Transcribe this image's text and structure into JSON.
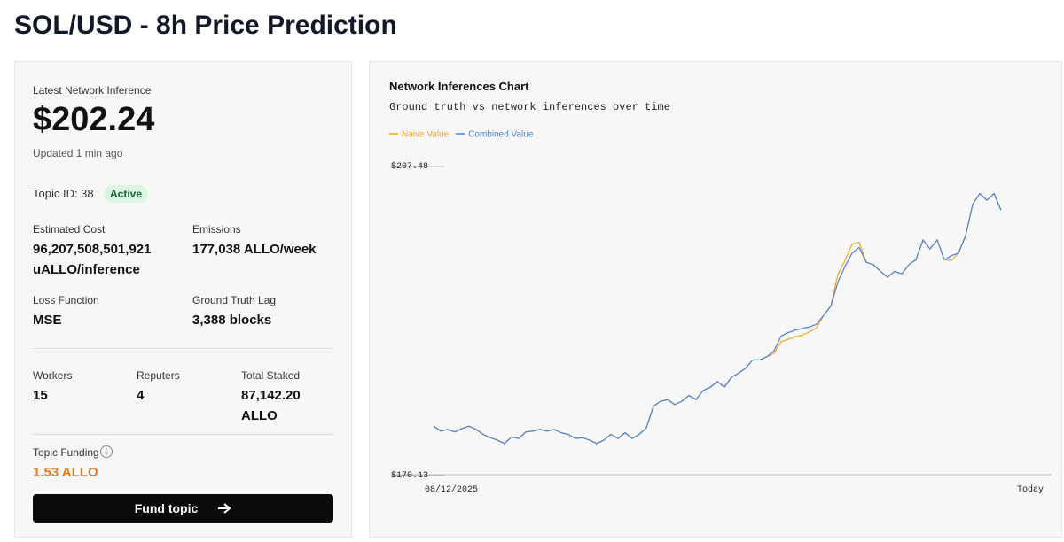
{
  "header": {
    "title": "SOL/USD - 8h Price Prediction"
  },
  "summary": {
    "label": "Latest Network Inference",
    "value": "$202.24",
    "updated": "Updated 1 min ago"
  },
  "topic": {
    "id": "Topic ID: 38",
    "status": "Active"
  },
  "details": [
    {
      "label": "Estimated Cost",
      "value": "96,207,508,501,921 uALLO/inference"
    },
    {
      "label": "Emissions",
      "value": "177,038 ALLO/week"
    },
    {
      "label": "Loss Function",
      "value": "MSE"
    },
    {
      "label": "Ground Truth Lag",
      "value": "3,388 blocks"
    }
  ],
  "stats": [
    {
      "label": "Workers",
      "value": "15"
    },
    {
      "label": "Reputers",
      "value": "4"
    },
    {
      "label": "Total Staked",
      "value": "87,142.20 ALLO"
    }
  ],
  "funding": {
    "label": "Topic Funding",
    "value": "1.53 ALLO",
    "button": "Fund topic"
  },
  "chart_data": {
    "type": "line",
    "title": "Network Inferences Chart",
    "subtitle": "Ground truth vs network inferences over time",
    "categories": [
      "08/12/2025",
      null,
      null,
      null,
      null,
      null,
      null,
      null,
      null,
      null,
      null,
      null,
      null,
      null,
      null,
      null,
      null,
      null,
      null,
      null,
      null,
      null,
      null,
      null,
      null,
      null,
      null,
      null,
      null,
      null,
      null,
      null,
      null,
      null,
      null,
      null,
      null,
      null,
      null,
      null,
      null,
      null,
      null,
      null,
      null,
      null,
      null,
      null,
      null,
      null,
      null,
      null,
      null,
      null,
      null,
      null,
      null,
      null,
      null,
      null,
      null,
      null,
      null,
      null,
      null,
      null,
      null,
      null,
      null,
      null,
      null,
      null,
      null,
      null,
      null,
      null,
      null,
      null,
      null,
      null,
      "Today"
    ],
    "series": [
      {
        "name": "Naive Value",
        "color": "#f5a623",
        "values": [
          176.0,
          175.4,
          175.6,
          175.3,
          175.7,
          176.0,
          175.6,
          175.0,
          174.6,
          174.3,
          173.9,
          174.7,
          174.5,
          175.3,
          175.4,
          175.6,
          175.4,
          175.6,
          175.2,
          175.0,
          174.5,
          174.6,
          174.3,
          173.9,
          174.3,
          175.0,
          174.5,
          175.2,
          174.5,
          175.0,
          175.8,
          178.4,
          179.0,
          179.2,
          178.6,
          179.0,
          179.7,
          179.2,
          180.3,
          180.7,
          181.4,
          180.7,
          181.9,
          182.4,
          183.0,
          184.0,
          184.0,
          184.4,
          184.8,
          186.2,
          186.5,
          186.8,
          187.0,
          187.4,
          187.9,
          189.4,
          190.5,
          194.3,
          196.0,
          198.0,
          198.2,
          195.8,
          195.5,
          194.7,
          194.0,
          194.7,
          194.4,
          195.5,
          196.1,
          198.5,
          197.4,
          198.5,
          196.1,
          196.0,
          196.9,
          199.0,
          202.8,
          204.1,
          203.3,
          204.1,
          202.1
        ]
      },
      {
        "name": "Combined Value",
        "color": "#4a7fd4",
        "values": [
          176.0,
          175.4,
          175.6,
          175.3,
          175.7,
          176.0,
          175.6,
          175.0,
          174.6,
          174.3,
          173.9,
          174.7,
          174.5,
          175.3,
          175.4,
          175.6,
          175.4,
          175.6,
          175.2,
          175.0,
          174.5,
          174.6,
          174.3,
          173.9,
          174.3,
          175.0,
          174.5,
          175.2,
          174.5,
          175.0,
          175.8,
          178.4,
          179.0,
          179.2,
          178.6,
          179.0,
          179.7,
          179.2,
          180.3,
          180.7,
          181.4,
          180.7,
          181.9,
          182.4,
          183.0,
          184.0,
          184.0,
          184.4,
          185.1,
          186.9,
          187.3,
          187.6,
          187.8,
          188.0,
          188.3,
          189.4,
          190.5,
          193.4,
          195.3,
          196.9,
          197.6,
          195.8,
          195.5,
          194.7,
          194.0,
          194.7,
          194.4,
          195.5,
          196.1,
          198.5,
          197.4,
          198.5,
          196.1,
          196.6,
          196.9,
          199.0,
          202.8,
          204.1,
          203.3,
          204.1,
          202.1
        ]
      }
    ],
    "ylim": [
      170.13,
      207.48
    ],
    "yticks": [
      {
        "value": 207.48,
        "label": "$207.48"
      },
      {
        "value": 170.13,
        "label": "$170.13"
      }
    ],
    "legend": "top-left"
  }
}
